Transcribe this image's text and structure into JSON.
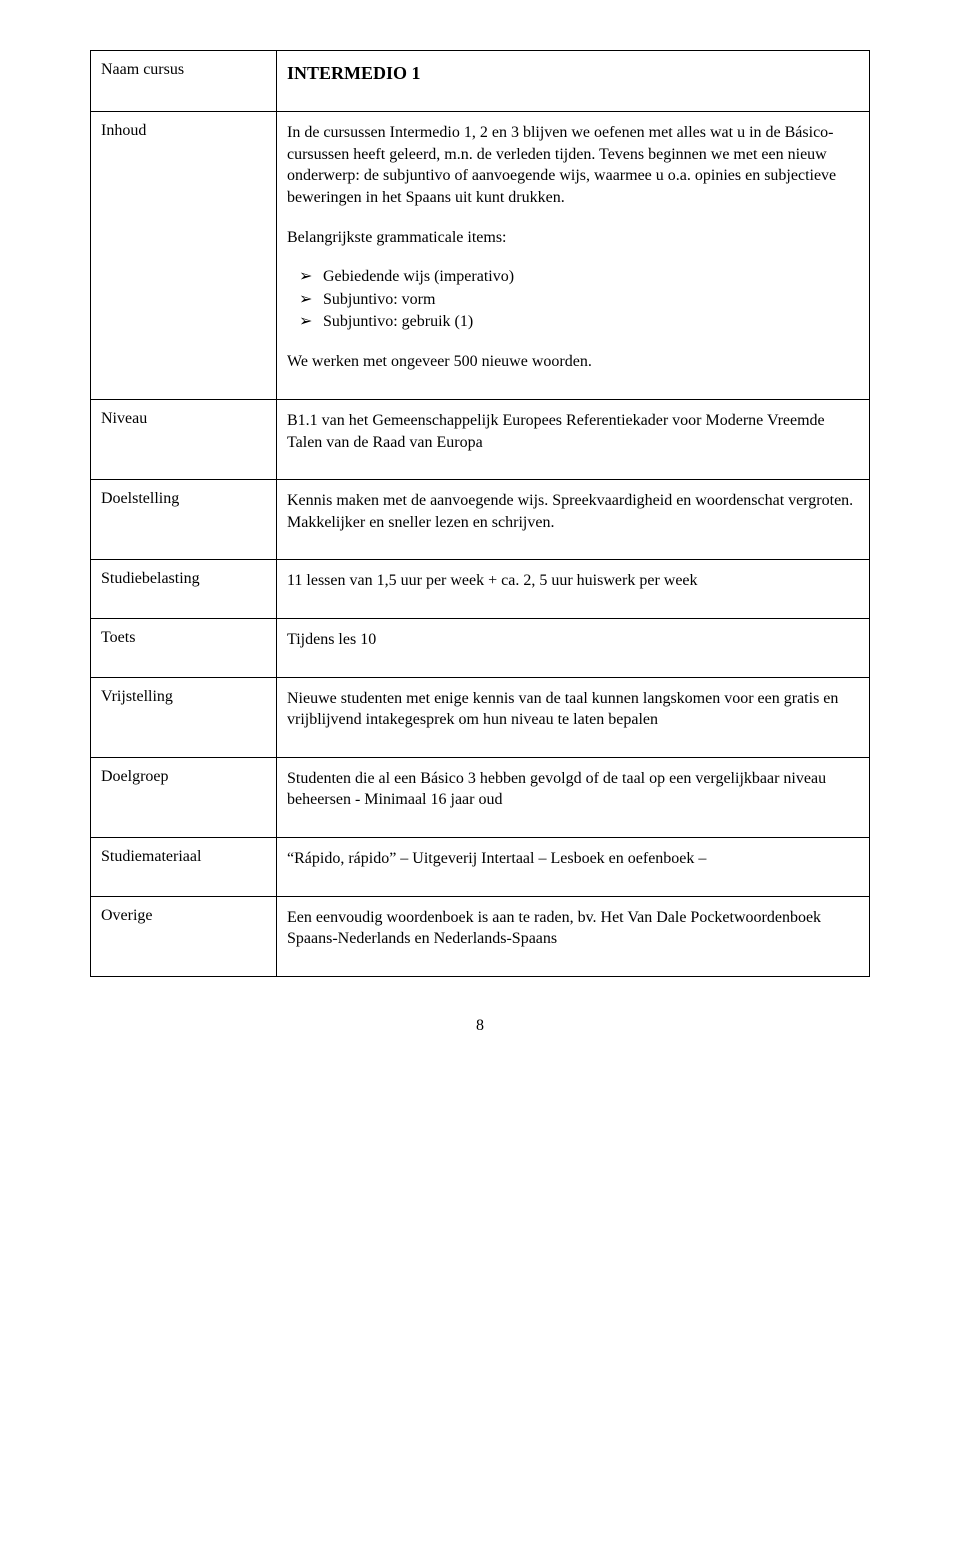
{
  "page_number": "8",
  "rows": [
    {
      "label": "Naam cursus",
      "content": {
        "title": "INTERMEDIO 1"
      }
    },
    {
      "label": "Inhoud",
      "content": {
        "paragraphs_before": [
          "In de cursussen Intermedio 1, 2 en 3 blijven we oefenen met alles wat u in de Básico-cursussen heeft geleerd, m.n. de verleden tijden. Tevens beginnen we met een nieuw onderwerp: de subjuntivo of aanvoegende wijs, waarmee u  o.a. opinies en subjectieve beweringen in het Spaans uit kunt drukken.",
          "Belangrijkste grammaticale items:"
        ],
        "bullets": [
          "Gebiedende wijs (imperativo)",
          "Subjuntivo: vorm",
          "Subjuntivo: gebruik (1)"
        ],
        "paragraphs_after": [
          "We werken met ongeveer 500 nieuwe woorden."
        ]
      }
    },
    {
      "label": "Niveau",
      "content": {
        "paragraphs_before": [
          "B1.1 van het Gemeenschappelijk Europees Referentiekader voor Moderne Vreemde Talen van de Raad van Europa"
        ]
      }
    },
    {
      "label": "Doelstelling",
      "content": {
        "paragraphs_before": [
          "Kennis maken met de aanvoegende wijs. Spreekvaardigheid en woordenschat vergroten. Makkelijker en sneller lezen en schrijven."
        ]
      }
    },
    {
      "label": "Studiebelasting",
      "content": {
        "paragraphs_before": [
          "11 lessen van 1,5 uur per week + ca. 2, 5 uur huiswerk per week"
        ]
      }
    },
    {
      "label": "Toets",
      "content": {
        "paragraphs_before": [
          "Tijdens les 10"
        ]
      }
    },
    {
      "label": "Vrijstelling",
      "content": {
        "paragraphs_before": [
          "Nieuwe studenten met enige kennis van de taal kunnen langskomen voor een gratis en vrijblijvend intakegesprek om hun niveau te laten bepalen"
        ]
      }
    },
    {
      "label": "Doelgroep",
      "content": {
        "paragraphs_before": [
          "Studenten die al een Básico 3 hebben gevolgd of de taal op een vergelijkbaar niveau beheersen - Minimaal 16 jaar oud"
        ]
      }
    },
    {
      "label": "Studiemateriaal",
      "content": {
        "paragraphs_before": [
          "“Rápido, rápido” – Uitgeverij Intertaal – Lesboek en oefenboek –"
        ]
      }
    },
    {
      "label": "Overige",
      "content": {
        "paragraphs_before": [
          "Een eenvoudig woordenboek is aan te raden, bv. Het Van Dale Pocketwoordenboek Spaans-Nederlands en Nederlands-Spaans"
        ]
      }
    }
  ]
}
